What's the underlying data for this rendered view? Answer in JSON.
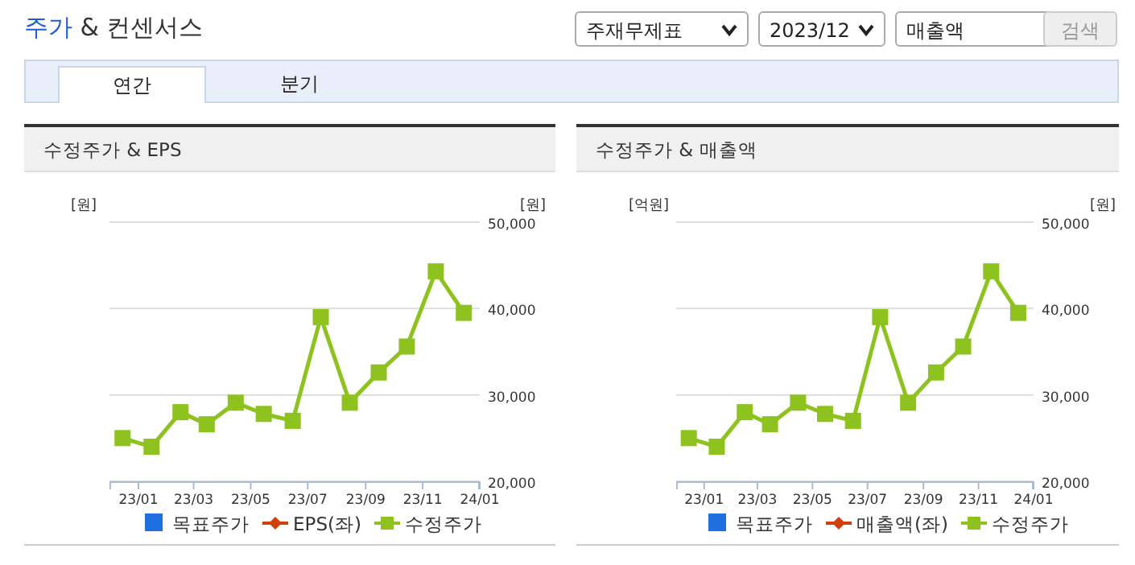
{
  "chart_data": [
    {
      "type": "other",
      "title": "주가 & 컨센서스",
      "annotations": [
        "주재무제표",
        "2023/12",
        "매출액",
        "검색",
        "연간",
        "분기"
      ]
    },
    {
      "type": "line",
      "title": "수정주가 & EPS",
      "ylabel": "[원]",
      "y2label": "[원]",
      "x": [
        "2022-12-15",
        "2023-01-15",
        "2023-02-15",
        "2023-03-15",
        "2023-04-15",
        "2023-05-15",
        "2023-06-15",
        "2023-07-15",
        "2023-08-15",
        "2023-09-15",
        "2023-10-15",
        "2023-11-15",
        "2023-12-15"
      ],
      "xlim": [
        "2022-12-01",
        "2024-01-01"
      ],
      "xticks": [
        {
          "value": "2023-01-01",
          "label": "23/01"
        },
        {
          "value": "2023-03-01",
          "label": "23/03"
        },
        {
          "value": "2023-05-01",
          "label": "23/05"
        },
        {
          "value": "2023-07-01",
          "label": "23/07"
        },
        {
          "value": "2023-09-01",
          "label": "23/09"
        },
        {
          "value": "2023-11-01",
          "label": "23/11"
        },
        {
          "value": "2024-01-01",
          "label": "24/01"
        }
      ],
      "y2lim": [
        20000,
        50000
      ],
      "y2ticks": [
        {
          "value": 20000,
          "label": "20,000"
        },
        {
          "value": 30000,
          "label": "30,000"
        },
        {
          "value": 40000,
          "label": "40,000"
        },
        {
          "value": 50000,
          "label": "50,000"
        }
      ],
      "grid": "y",
      "legend": "bottom",
      "series": [
        {
          "name": "목표주가",
          "type": "bar",
          "color": "#1f6fde",
          "values": [
            null,
            null,
            null,
            null,
            null,
            null,
            null,
            null,
            null,
            null,
            null,
            null,
            null
          ]
        },
        {
          "name": "EPS(좌)",
          "type": "line",
          "color": "#d2400e",
          "marker": "diamond",
          "values": [
            null,
            null,
            null,
            null,
            null,
            null,
            null,
            null,
            null,
            null,
            null,
            null,
            null
          ]
        },
        {
          "name": "수정주가",
          "type": "line",
          "axis": "y2",
          "color": "#8dc21f",
          "marker": "square",
          "values": [
            25000,
            24000,
            28000,
            26600,
            29100,
            27800,
            27000,
            39000,
            29100,
            32600,
            35600,
            44300,
            39500
          ]
        }
      ]
    },
    {
      "type": "line",
      "title": "수정주가 & 매출액",
      "ylabel": "[억원]",
      "y2label": "[원]",
      "x": [
        "2022-12-15",
        "2023-01-15",
        "2023-02-15",
        "2023-03-15",
        "2023-04-15",
        "2023-05-15",
        "2023-06-15",
        "2023-07-15",
        "2023-08-15",
        "2023-09-15",
        "2023-10-15",
        "2023-11-15",
        "2023-12-15"
      ],
      "xlim": [
        "2022-12-01",
        "2024-01-01"
      ],
      "xticks": [
        {
          "value": "2023-01-01",
          "label": "23/01"
        },
        {
          "value": "2023-03-01",
          "label": "23/03"
        },
        {
          "value": "2023-05-01",
          "label": "23/05"
        },
        {
          "value": "2023-07-01",
          "label": "23/07"
        },
        {
          "value": "2023-09-01",
          "label": "23/09"
        },
        {
          "value": "2023-11-01",
          "label": "23/11"
        },
        {
          "value": "2024-01-01",
          "label": "24/01"
        }
      ],
      "y2lim": [
        20000,
        50000
      ],
      "y2ticks": [
        {
          "value": 20000,
          "label": "20,000"
        },
        {
          "value": 30000,
          "label": "30,000"
        },
        {
          "value": 40000,
          "label": "40,000"
        },
        {
          "value": 50000,
          "label": "50,000"
        }
      ],
      "grid": "y",
      "legend": "bottom",
      "series": [
        {
          "name": "목표주가",
          "type": "bar",
          "color": "#1f6fde",
          "values": [
            null,
            null,
            null,
            null,
            null,
            null,
            null,
            null,
            null,
            null,
            null,
            null,
            null
          ]
        },
        {
          "name": "매출액(좌)",
          "type": "line",
          "color": "#d2400e",
          "marker": "diamond",
          "values": [
            null,
            null,
            null,
            null,
            null,
            null,
            null,
            null,
            null,
            null,
            null,
            null,
            null
          ]
        },
        {
          "name": "수정주가",
          "type": "line",
          "axis": "y2",
          "color": "#8dc21f",
          "marker": "square",
          "values": [
            25000,
            24000,
            28000,
            26600,
            29100,
            27800,
            27000,
            39000,
            29100,
            32600,
            35600,
            44300,
            39500
          ]
        }
      ]
    }
  ]
}
